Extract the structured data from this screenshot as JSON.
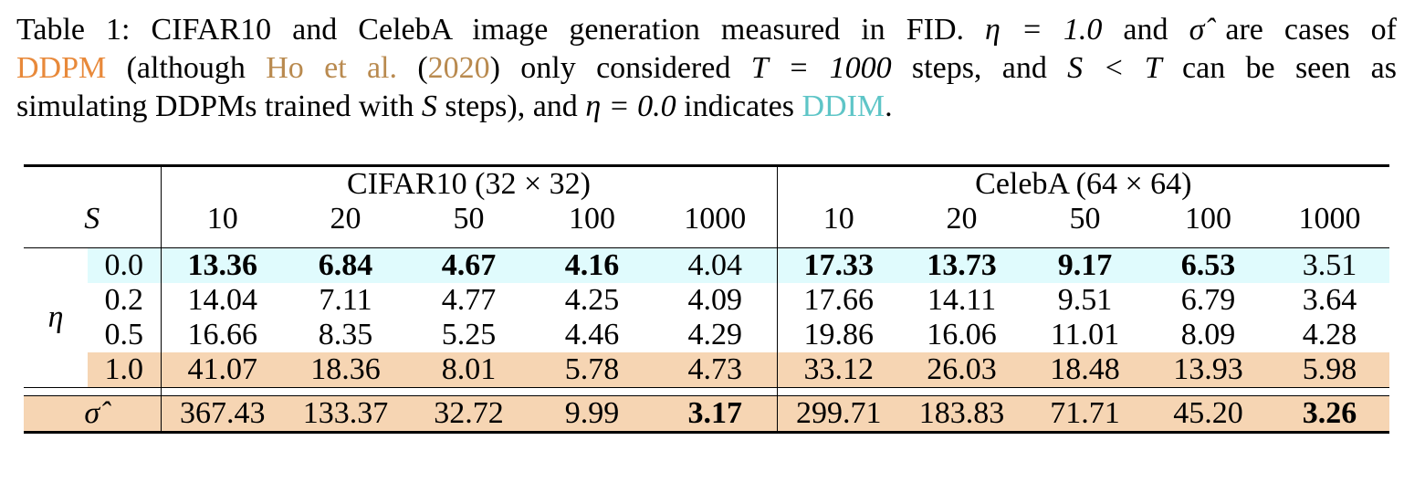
{
  "caption": {
    "line1": "Table 1:  CIFAR10 and CelebA image generation measured in FID.",
    "eta_expr_1": "η = 1.0",
    "and_sigma": " and ",
    "sigma_hat": "σ̂",
    "line1_end": " are cases of",
    "ddpm": "DDPM",
    "line2_a": " (although ",
    "cite_authors": "Ho et al.",
    "cite_paren_open": " (",
    "cite_year": "2020",
    "line2_b": ") only considered ",
    "t_expr": "T = 1000",
    "line2_c": " steps, and ",
    "st_expr": "S < T",
    "line2_d": " can be seen as",
    "line3_a": "simulating DDPMs trained with ",
    "s_var": "S",
    "line3_b": " steps), and ",
    "eta_expr_0": "η = 0.0",
    "line3_c": " indicates ",
    "ddim": "DDIM",
    "line3_end": "."
  },
  "table": {
    "s_label": "S",
    "eta_label": "η",
    "cifar_header": "CIFAR10 (32 × 32)",
    "celeba_header": "CelebA (64 × 64)",
    "steps": [
      "10",
      "20",
      "50",
      "100",
      "1000"
    ],
    "rows": [
      {
        "label": "0.0",
        "cifar": [
          "13.36",
          "6.84",
          "4.67",
          "4.16",
          "4.04"
        ],
        "celeba": [
          "17.33",
          "13.73",
          "9.17",
          "6.53",
          "3.51"
        ]
      },
      {
        "label": "0.2",
        "cifar": [
          "14.04",
          "7.11",
          "4.77",
          "4.25",
          "4.09"
        ],
        "celeba": [
          "17.66",
          "14.11",
          "9.51",
          "6.79",
          "3.64"
        ]
      },
      {
        "label": "0.5",
        "cifar": [
          "16.66",
          "8.35",
          "5.25",
          "4.46",
          "4.29"
        ],
        "celeba": [
          "19.86",
          "16.06",
          "11.01",
          "8.09",
          "4.28"
        ]
      },
      {
        "label": "1.0",
        "cifar": [
          "41.07",
          "18.36",
          "8.01",
          "5.78",
          "4.73"
        ],
        "celeba": [
          "33.12",
          "26.03",
          "18.48",
          "13.93",
          "5.98"
        ]
      }
    ],
    "sigma_row": {
      "label": "σ̂",
      "cifar": [
        "367.43",
        "133.37",
        "32.72",
        "9.99",
        "3.17"
      ],
      "celeba": [
        "299.71",
        "183.83",
        "71.71",
        "45.20",
        "3.26"
      ]
    }
  }
}
